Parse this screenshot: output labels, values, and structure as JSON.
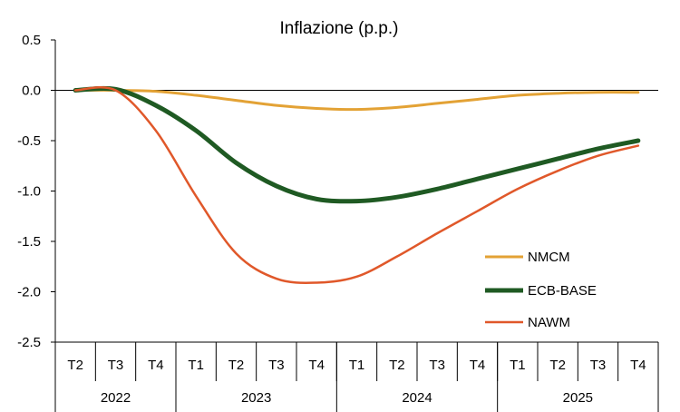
{
  "chart_data": {
    "type": "line",
    "title": "Inflazione (p.p.)",
    "xlabel": "",
    "ylabel": "",
    "ylim": [
      -2.5,
      0.5
    ],
    "yticks": [
      0.5,
      0.0,
      -0.5,
      -1.0,
      -1.5,
      -2.0,
      -2.5
    ],
    "ytick_labels": [
      "0.5",
      "0.0",
      "-0.5",
      "-1.0",
      "-1.5",
      "-2.0",
      "-2.5"
    ],
    "quarter_labels": [
      "T2",
      "T3",
      "T4",
      "T1",
      "T2",
      "T3",
      "T4",
      "T1",
      "T2",
      "T3",
      "T4",
      "T1",
      "T2",
      "T3",
      "T4"
    ],
    "years": [
      {
        "label": "2022",
        "quarters": 3
      },
      {
        "label": "2023",
        "quarters": 4
      },
      {
        "label": "2024",
        "quarters": 4
      },
      {
        "label": "2025",
        "quarters": 4
      }
    ],
    "grid": false,
    "legend_position": "right",
    "series": [
      {
        "name": "NMCM",
        "color": "#E3A235",
        "values": [
          0.0,
          0.0,
          -0.01,
          -0.05,
          -0.1,
          -0.15,
          -0.18,
          -0.19,
          -0.17,
          -0.13,
          -0.09,
          -0.05,
          -0.03,
          -0.02,
          -0.02
        ]
      },
      {
        "name": "ECB-BASE",
        "color": "#1F5A23",
        "values": [
          0.0,
          0.01,
          -0.15,
          -0.4,
          -0.72,
          -0.95,
          -1.08,
          -1.1,
          -1.06,
          -0.98,
          -0.88,
          -0.78,
          -0.68,
          -0.58,
          -0.5
        ]
      },
      {
        "name": "NAWM",
        "color": "#E0582A",
        "values": [
          0.0,
          0.0,
          -0.4,
          -1.05,
          -1.62,
          -1.87,
          -1.91,
          -1.85,
          -1.65,
          -1.42,
          -1.2,
          -0.98,
          -0.8,
          -0.65,
          -0.55
        ]
      }
    ]
  }
}
